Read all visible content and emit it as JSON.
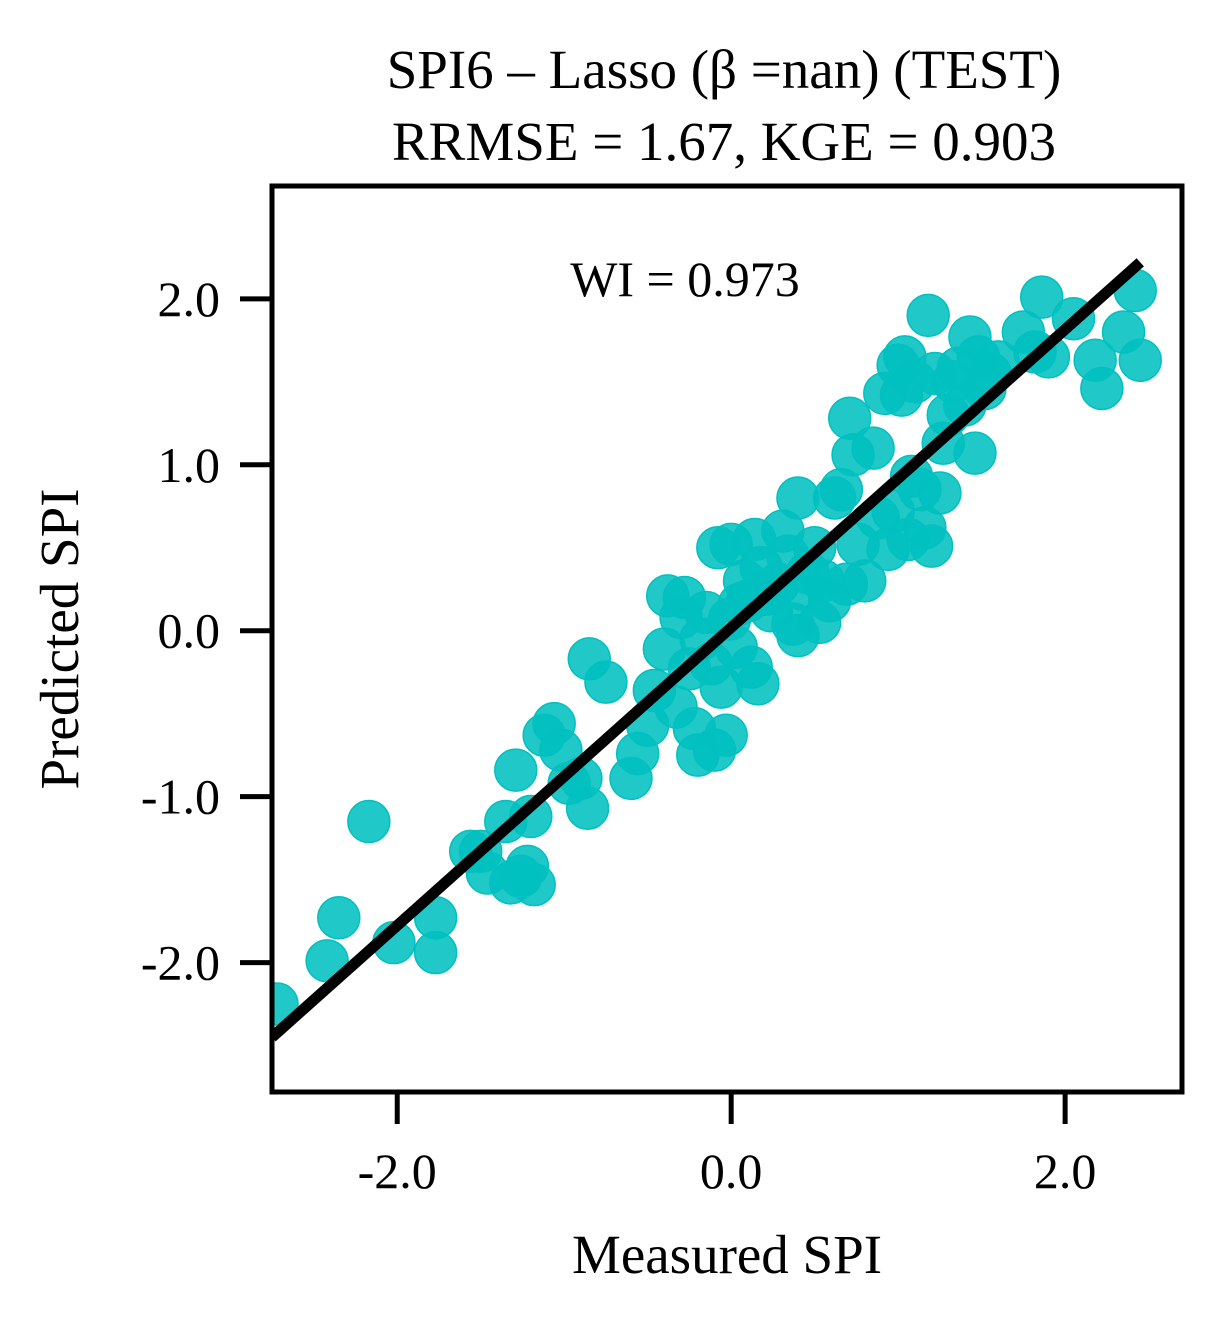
{
  "chart_data": {
    "type": "scatter",
    "title_line1": "SPI6 – Lasso (β =nan) (TEST)",
    "title_line2": "RRMSE = 1.67, KGE = 0.903",
    "xlabel": "Measured SPI",
    "ylabel": "Predicted SPI",
    "annotation": "WI = 0.973",
    "xlim": [
      -2.75,
      2.7
    ],
    "ylim": [
      -2.78,
      2.68
    ],
    "xticks": [
      -2.0,
      0.0,
      2.0
    ],
    "xtick_labels": [
      "-2.0",
      "0.0",
      "2.0"
    ],
    "yticks": [
      -2.0,
      -1.0,
      0.0,
      1.0,
      2.0
    ],
    "ytick_labels": [
      "-2.0",
      "-1.0",
      "0.0",
      "1.0",
      "2.0"
    ],
    "grid": false,
    "point_color": "#00C0C0",
    "line_color": "#000000",
    "fit_line": {
      "x": [
        -2.75,
        2.45
      ],
      "y": [
        -2.45,
        2.22
      ]
    },
    "points": [
      [
        -2.72,
        -2.25
      ],
      [
        -2.42,
        -1.99
      ],
      [
        -2.35,
        -1.73
      ],
      [
        -2.17,
        -1.15
      ],
      [
        -2.02,
        -1.88
      ],
      [
        -1.77,
        -1.73
      ],
      [
        -1.77,
        -1.94
      ],
      [
        -1.56,
        -1.33
      ],
      [
        -1.5,
        -1.33
      ],
      [
        -1.46,
        -1.46
      ],
      [
        -1.35,
        -1.15
      ],
      [
        -1.32,
        -1.52
      ],
      [
        -1.26,
        -1.48
      ],
      [
        -1.22,
        -1.42
      ],
      [
        -1.18,
        -1.53
      ],
      [
        -1.29,
        -0.84
      ],
      [
        -1.2,
        -1.12
      ],
      [
        -1.12,
        -0.63
      ],
      [
        -1.06,
        -0.56
      ],
      [
        -1.02,
        -0.72
      ],
      [
        -0.97,
        -0.92
      ],
      [
        -0.9,
        -0.89
      ],
      [
        -0.86,
        -1.07
      ],
      [
        -0.85,
        -0.17
      ],
      [
        -0.75,
        -0.31
      ],
      [
        -0.6,
        -0.89
      ],
      [
        -0.56,
        -0.74
      ],
      [
        -0.5,
        -0.57
      ],
      [
        -0.46,
        -0.36
      ],
      [
        -0.4,
        -0.11
      ],
      [
        -0.38,
        0.21
      ],
      [
        -0.33,
        -0.46
      ],
      [
        -0.3,
        0.08
      ],
      [
        -0.28,
        0.2
      ],
      [
        -0.25,
        -0.23
      ],
      [
        -0.22,
        -0.59
      ],
      [
        -0.2,
        -0.75
      ],
      [
        -0.18,
        -0.05
      ],
      [
        -0.15,
        0.11
      ],
      [
        -0.12,
        -0.2
      ],
      [
        -0.1,
        -0.72
      ],
      [
        -0.08,
        0.5
      ],
      [
        -0.06,
        -0.34
      ],
      [
        -0.03,
        -0.63
      ],
      [
        -0.01,
        0.07
      ],
      [
        0.0,
        0.52
      ],
      [
        0.03,
        -0.1
      ],
      [
        0.05,
        0.16
      ],
      [
        0.08,
        0.3
      ],
      [
        0.1,
        0.18
      ],
      [
        0.12,
        -0.22
      ],
      [
        0.14,
        0.55
      ],
      [
        0.16,
        -0.32
      ],
      [
        0.18,
        0.38
      ],
      [
        0.21,
        0.22
      ],
      [
        0.24,
        0.12
      ],
      [
        0.28,
        0.28
      ],
      [
        0.31,
        0.6
      ],
      [
        0.34,
        0.45
      ],
      [
        0.37,
        0.04
      ],
      [
        0.4,
        -0.03
      ],
      [
        0.4,
        0.8
      ],
      [
        0.43,
        0.25
      ],
      [
        0.46,
        0.35
      ],
      [
        0.5,
        0.5
      ],
      [
        0.53,
        0.05
      ],
      [
        0.55,
        0.3
      ],
      [
        0.59,
        0.18
      ],
      [
        0.62,
        0.8
      ],
      [
        0.66,
        0.85
      ],
      [
        0.69,
        0.28
      ],
      [
        0.71,
        1.28
      ],
      [
        0.73,
        1.06
      ],
      [
        0.76,
        0.52
      ],
      [
        0.8,
        0.3
      ],
      [
        0.85,
        1.1
      ],
      [
        0.88,
        0.68
      ],
      [
        0.92,
        1.43
      ],
      [
        0.94,
        0.49
      ],
      [
        0.97,
        0.72
      ],
      [
        1.0,
        1.6
      ],
      [
        1.02,
        1.42
      ],
      [
        1.04,
        1.65
      ],
      [
        1.06,
        0.55
      ],
      [
        1.08,
        0.93
      ],
      [
        1.1,
        1.5
      ],
      [
        1.13,
        0.85
      ],
      [
        1.16,
        0.62
      ],
      [
        1.18,
        1.9
      ],
      [
        1.2,
        0.51
      ],
      [
        1.22,
        1.55
      ],
      [
        1.25,
        0.83
      ],
      [
        1.27,
        1.13
      ],
      [
        1.3,
        1.3
      ],
      [
        1.33,
        1.5
      ],
      [
        1.36,
        1.58
      ],
      [
        1.4,
        1.36
      ],
      [
        1.43,
        1.77
      ],
      [
        1.46,
        1.07
      ],
      [
        1.48,
        1.65
      ],
      [
        1.52,
        1.46
      ],
      [
        1.55,
        1.55
      ],
      [
        1.6,
        1.62
      ],
      [
        1.75,
        1.8
      ],
      [
        1.82,
        1.68
      ],
      [
        1.86,
        2.01
      ],
      [
        1.9,
        1.65
      ],
      [
        2.05,
        1.88
      ],
      [
        2.18,
        1.63
      ],
      [
        2.22,
        1.46
      ],
      [
        2.35,
        1.8
      ],
      [
        2.42,
        2.05
      ],
      [
        2.45,
        1.63
      ]
    ]
  }
}
